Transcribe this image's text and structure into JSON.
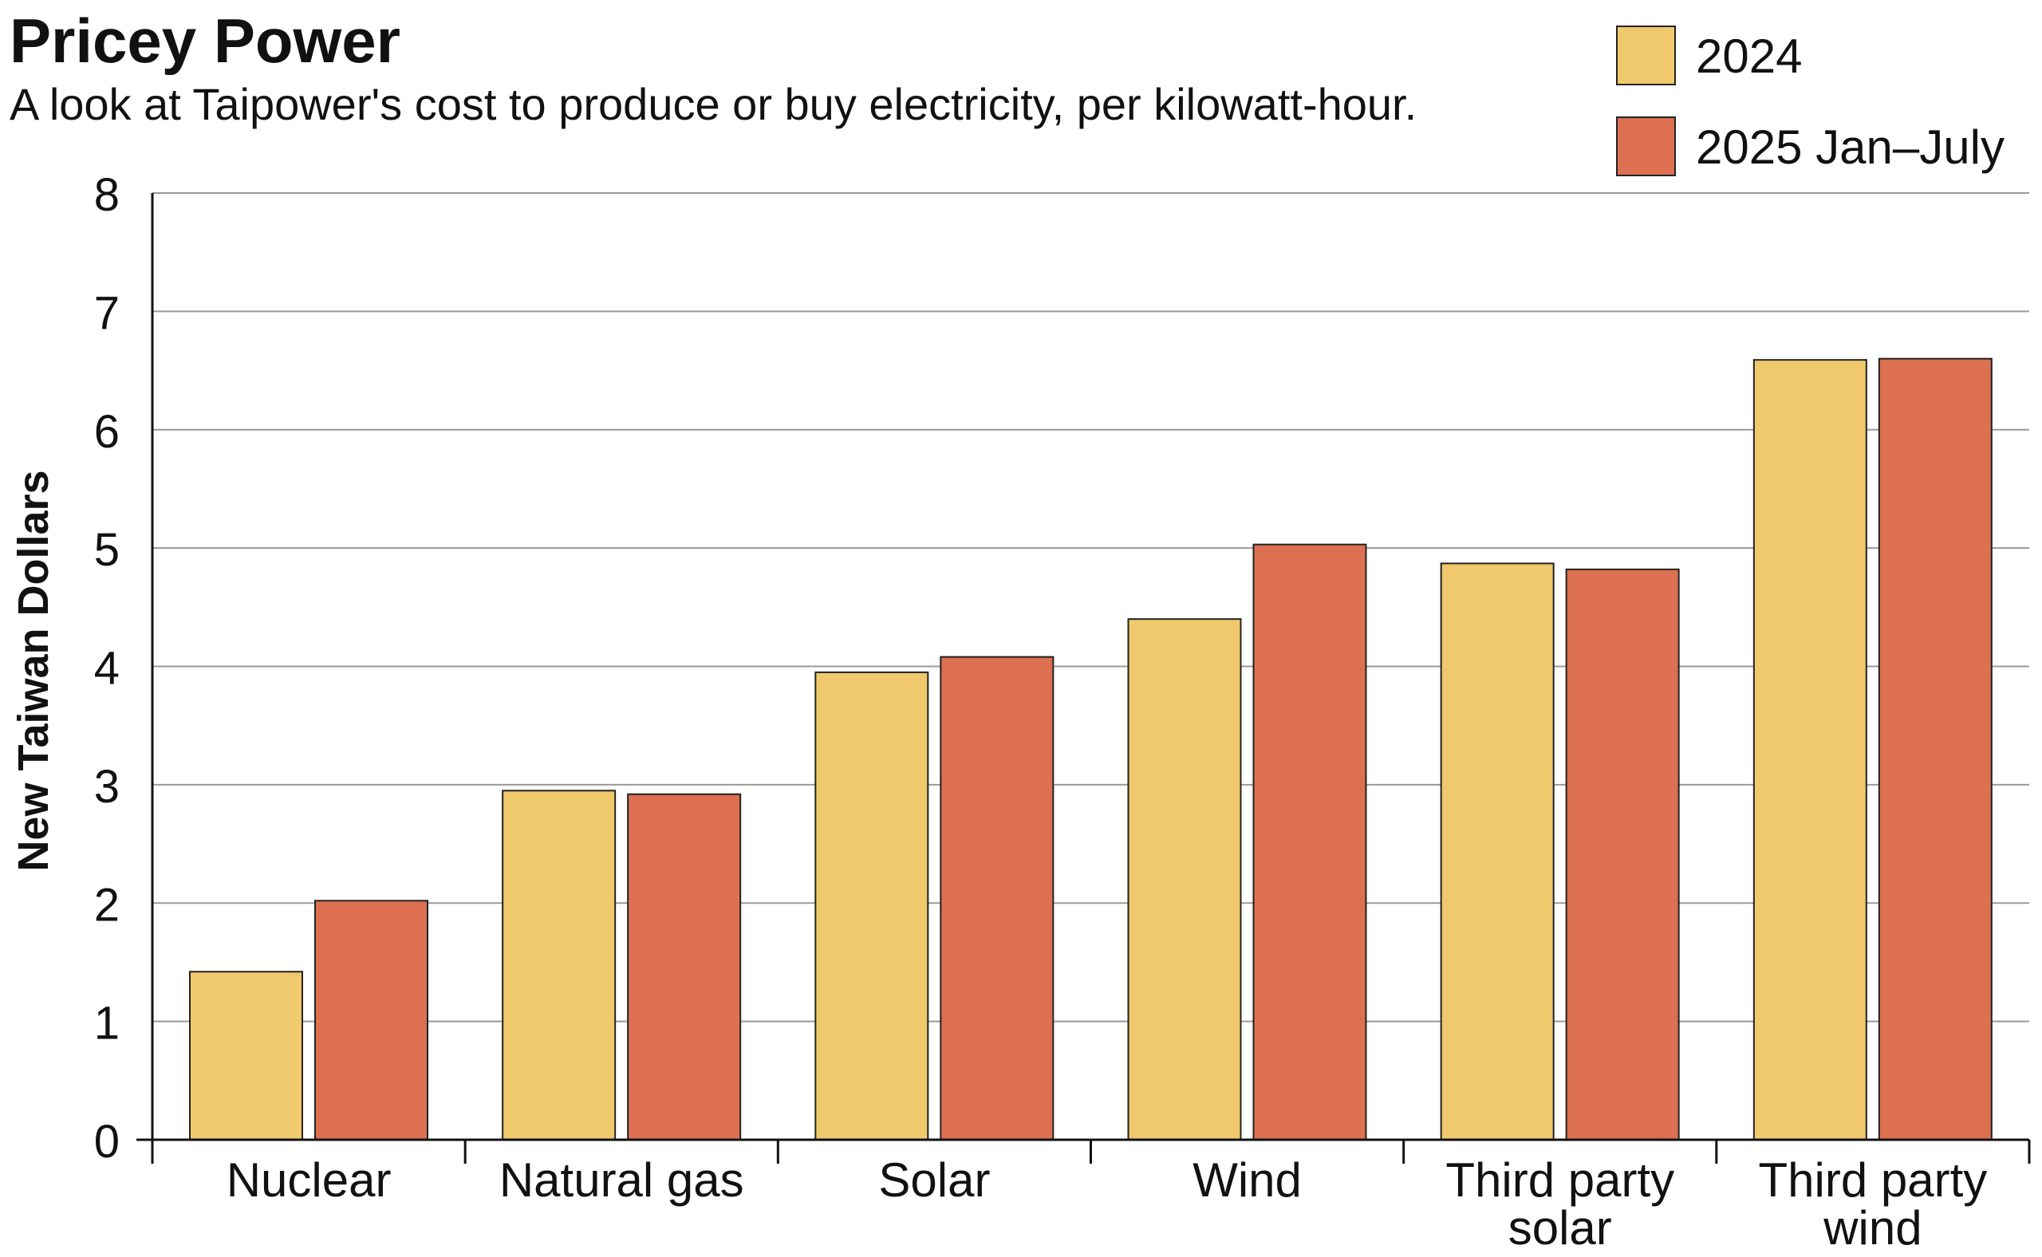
{
  "chart_data": {
    "type": "bar",
    "title": "Pricey Power",
    "subtitle": "A look at Taipower's cost to produce or buy electricity, per kilowatt-hour.",
    "xlabel": "",
    "ylabel": "New Taiwan Dollars",
    "ylim": [
      0,
      8
    ],
    "yticks": [
      "0",
      "1",
      "2",
      "3",
      "4",
      "5",
      "6",
      "7",
      "8"
    ],
    "grid": true,
    "legend_position": "top-right",
    "categories": [
      [
        "Nuclear"
      ],
      [
        "Natural gas"
      ],
      [
        "Solar"
      ],
      [
        "Wind"
      ],
      [
        "Third party",
        "solar"
      ],
      [
        "Third party",
        "wind"
      ]
    ],
    "series": [
      {
        "name": "2024",
        "color": "#EFC96B",
        "values": [
          1.42,
          2.95,
          3.95,
          4.4,
          4.87,
          6.59
        ]
      },
      {
        "name": "2025 Jan–July",
        "color": "#DC7051",
        "values": [
          2.02,
          2.92,
          4.08,
          5.03,
          4.82,
          6.6
        ]
      }
    ]
  }
}
